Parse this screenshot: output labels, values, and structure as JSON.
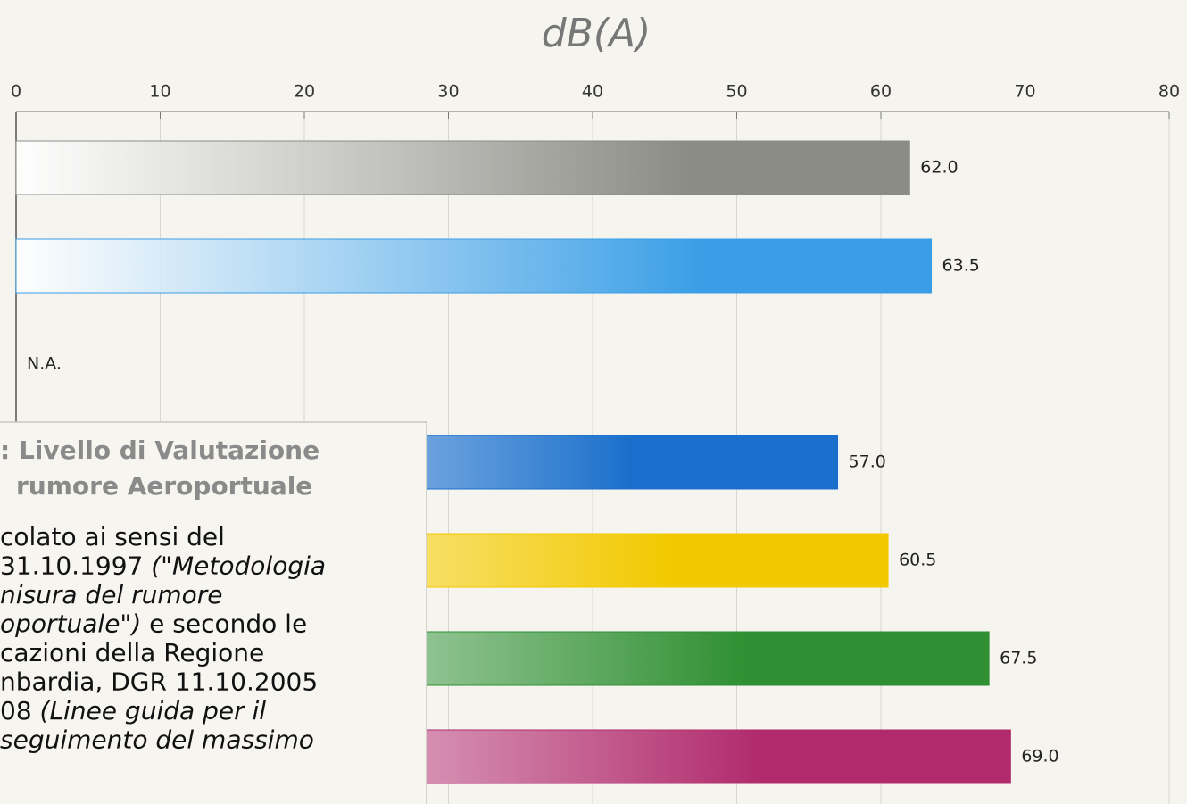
{
  "chart_data": {
    "type": "hbar",
    "axis_title": "dB(A)",
    "categories": [
      null,
      null,
      null,
      null,
      null,
      null,
      null
    ],
    "values": [
      62.0,
      63.5,
      null,
      57.0,
      60.5,
      67.5,
      69.0
    ],
    "value_labels": [
      "62.0",
      "63.5",
      "N.A.",
      "57.0",
      "60.5",
      "67.5",
      "69.0"
    ],
    "colors": [
      "#8c8c86",
      "#3a9ee6",
      "#888888",
      "#1a6fcc",
      "#f2c900",
      "#2f8f32",
      "#b02a6c"
    ],
    "xlim": [
      0,
      80
    ],
    "xticks": [
      0,
      10,
      20,
      30,
      40,
      50,
      60,
      70,
      80
    ],
    "grid": true,
    "annotation": {
      "title": [
        ": Livello di Valutazione",
        "rumore Aeroportuale"
      ],
      "lines": [
        [
          {
            "text": "colato ai sensi del",
            "style": "normal"
          }
        ],
        [
          {
            "text": "31.10.1997 ",
            "style": "normal"
          },
          {
            "text": "(\"Metodologia",
            "style": "italic"
          }
        ],
        [
          {
            "text": "nisura del rumore",
            "style": "italic"
          }
        ],
        [
          {
            "text": "oportuale\")",
            "style": "italic"
          },
          {
            "text": " e secondo le",
            "style": "normal"
          }
        ],
        [
          {
            "text": "cazioni della Regione",
            "style": "normal"
          }
        ],
        [
          {
            "text": "nbardia, DGR 11.10.2005",
            "style": "normal"
          }
        ],
        [
          {
            "text": "08 ",
            "style": "normal"
          },
          {
            "text": "(Linee guida per il",
            "style": "italic"
          }
        ],
        [
          {
            "text": "seguimento del massimo",
            "style": "italic"
          }
        ]
      ]
    }
  }
}
